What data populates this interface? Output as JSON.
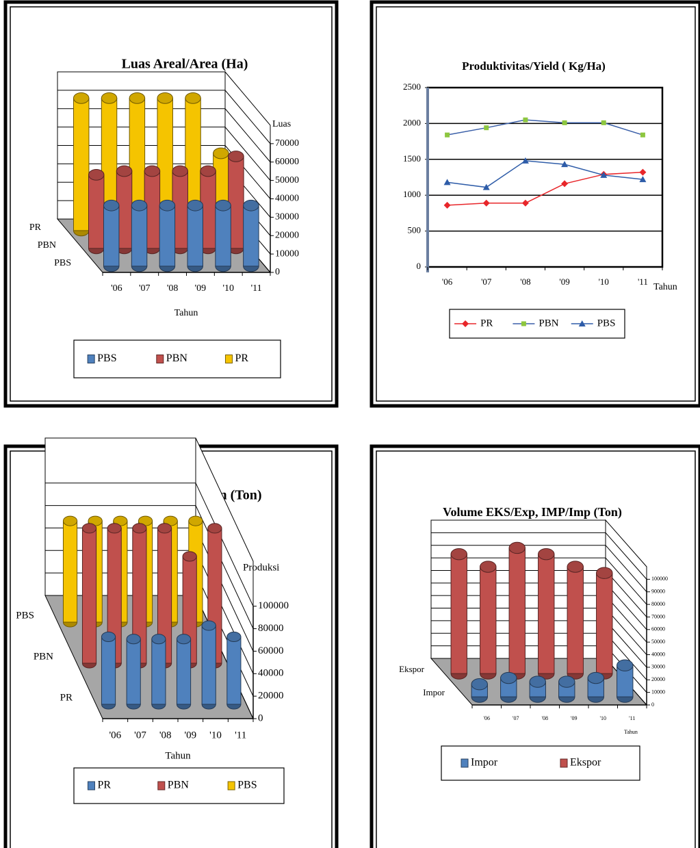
{
  "chart_data": [
    {
      "type": "bar",
      "title": "Luas Areal/Area (Ha)",
      "x_label": "Tahun",
      "y_label": "Luas",
      "categories": [
        "'06",
        "'07",
        "'08",
        "'09",
        "'10",
        "'11"
      ],
      "series": [
        {
          "name": "PBS",
          "color": "#4f81bd",
          "values": [
            33000,
            33000,
            33000,
            33000,
            33000,
            33000
          ]
        },
        {
          "name": "PBN",
          "color": "#c0504d",
          "values": [
            40000,
            42000,
            42000,
            42000,
            42000,
            50000
          ]
        },
        {
          "name": "PR",
          "color": "#f5c400",
          "values": [
            72000,
            72000,
            72000,
            72000,
            72000,
            42000
          ]
        }
      ],
      "ylim": [
        0,
        80000
      ],
      "yticks": [
        0,
        10000,
        20000,
        30000,
        40000,
        50000,
        60000,
        70000
      ],
      "grid": true,
      "legend": "bottom"
    },
    {
      "type": "line",
      "title": "Produktivitas/Yield ( Kg/Ha)",
      "x_label": "Tahun",
      "categories": [
        "'06",
        "'07",
        "'08",
        "'09",
        "'10",
        "'11"
      ],
      "series": [
        {
          "name": "PR",
          "color": "#e8262a",
          "line_color": "#e8262a",
          "marker": "diamond",
          "values": [
            860,
            890,
            890,
            1160,
            1290,
            1320
          ]
        },
        {
          "name": "PBN",
          "color": "#8dc63f",
          "line_color": "#3a5fa8",
          "marker": "square",
          "values": [
            1840,
            1940,
            2050,
            2010,
            2010,
            1840
          ]
        },
        {
          "name": "PBS",
          "color": "#2e5ca8",
          "line_color": "#2e5ca8",
          "marker": "triangle",
          "values": [
            1180,
            1110,
            1480,
            1430,
            1280,
            1220
          ]
        }
      ],
      "ylim": [
        0,
        2500
      ],
      "yticks": [
        0,
        500,
        1000,
        1500,
        2000,
        2500
      ],
      "grid": true,
      "legend": "bottom"
    },
    {
      "type": "bar",
      "title": "Produksi/Production (Ton)",
      "x_label": "Tahun",
      "y_label": "Produksi",
      "categories": [
        "'06",
        "'07",
        "'08",
        "'09",
        "'10",
        "'11"
      ],
      "series": [
        {
          "name": "PR",
          "color": "#4f81bd",
          "values": [
            60000,
            58000,
            58000,
            58000,
            70000,
            60000
          ]
        },
        {
          "name": "PBN",
          "color": "#c0504d",
          "values": [
            120000,
            120000,
            120000,
            120000,
            95000,
            120000
          ]
        },
        {
          "name": "PBS",
          "color": "#f5c400",
          "values": [
            90000,
            90000,
            90000,
            90000,
            90000,
            90000
          ]
        }
      ],
      "ylim": [
        0,
        140000
      ],
      "yticks": [
        0,
        20000,
        40000,
        60000,
        80000,
        100000
      ],
      "grid": true,
      "legend": "bottom"
    },
    {
      "type": "bar",
      "title": "Volume EKS/Exp, IMP/Imp (Ton)",
      "x_label": "Tahun",
      "categories": [
        "'06",
        "'07",
        "'08",
        "'09",
        "'10",
        "'11"
      ],
      "series": [
        {
          "name": "Impor",
          "color": "#4f81bd",
          "values": [
            10000,
            15000,
            12000,
            12000,
            15000,
            25000
          ]
        },
        {
          "name": "Ekspor",
          "color": "#c0504d",
          "values": [
            95000,
            85000,
            100000,
            95000,
            85000,
            80000
          ]
        }
      ],
      "ylim": [
        0,
        110000
      ],
      "yticks": [
        0,
        10000,
        20000,
        30000,
        40000,
        50000,
        60000,
        70000,
        80000,
        90000,
        100000
      ],
      "grid": true,
      "legend": "bottom"
    }
  ]
}
